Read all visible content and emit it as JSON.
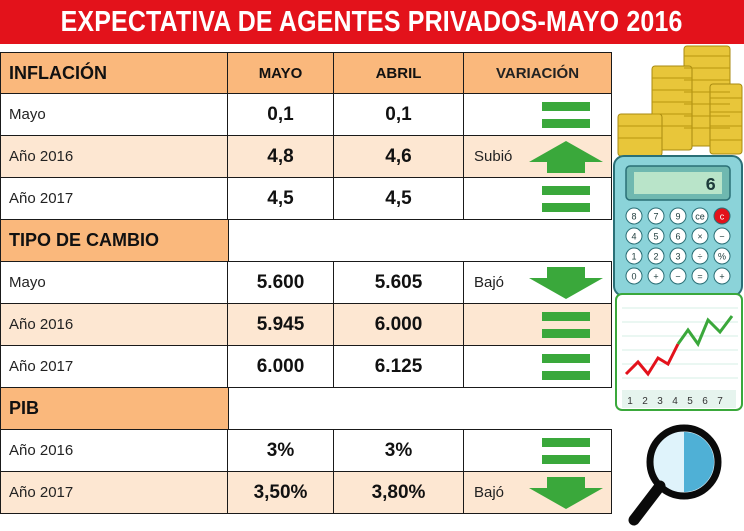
{
  "title": "EXPECTATIVA DE AGENTES PRIVADOS-MAYO 2016",
  "columns": {
    "mayo": "MAYO",
    "abril": "ABRIL",
    "variacion": "VARIACIÓN"
  },
  "sections": {
    "inflacion": {
      "label": "INFLACIÓN",
      "rows": [
        {
          "label": "Mayo",
          "mayo": "0,1",
          "abril": "0,1",
          "variacion": ""
        },
        {
          "label": "Año 2016",
          "mayo": "4,8",
          "abril": "4,6",
          "variacion": "Subió"
        },
        {
          "label": "Año 2017",
          "mayo": "4,5",
          "abril": "4,5",
          "variacion": ""
        }
      ]
    },
    "tipo_cambio": {
      "label": "TIPO DE CAMBIO",
      "rows": [
        {
          "label": "Mayo",
          "mayo": "5.600",
          "abril": "5.605",
          "variacion": "Bajó"
        },
        {
          "label": "Año 2016",
          "mayo": "5.945",
          "abril": "6.000",
          "variacion": ""
        },
        {
          "label": "Año 2017",
          "mayo": "6.000",
          "abril": "6.125",
          "variacion": ""
        }
      ]
    },
    "pib": {
      "label": "PIB",
      "rows": [
        {
          "label": "Año 2016",
          "mayo": "3%",
          "abril": "3%",
          "variacion": ""
        },
        {
          "label": "Año 2017",
          "mayo": "3,50%",
          "abril": "3,80%",
          "variacion": "Bajó"
        }
      ]
    }
  },
  "illustration": {
    "calculator_display": "6",
    "calculator_keys": [
      "8",
      "7",
      "9",
      "ce",
      "c",
      "4",
      "5",
      "6",
      "×",
      "−",
      "1",
      "2",
      "3",
      "÷",
      "%",
      "0",
      "+",
      "−",
      "=",
      "+"
    ],
    "chart_axis": [
      "1",
      "2",
      "3",
      "4",
      "5",
      "6",
      "7"
    ]
  },
  "colors": {
    "title_bg": "#e3121b",
    "header_bg": "#fab87c",
    "shade_bg": "#fde7d2",
    "green": "#3aa83b"
  }
}
